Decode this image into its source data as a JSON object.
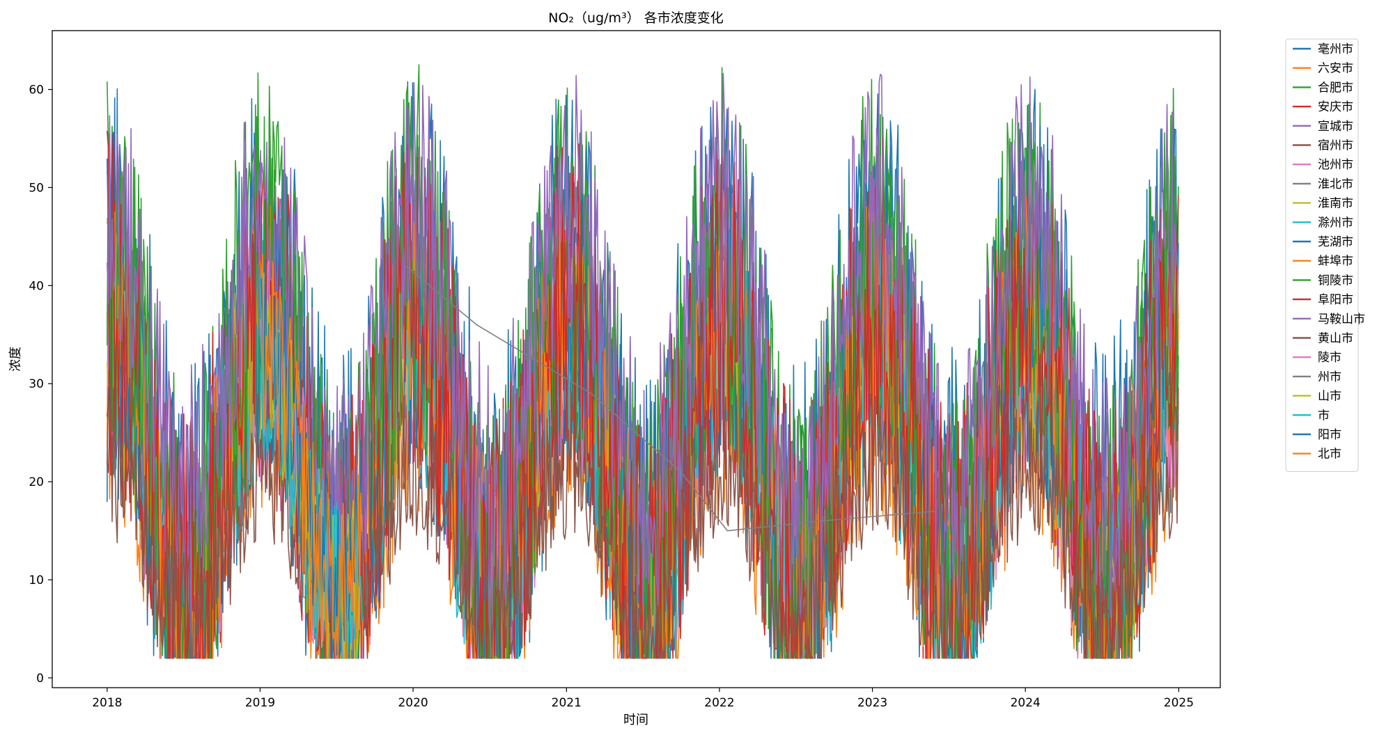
{
  "chart_data": {
    "type": "line",
    "title": "NO₂（ug/m³） 各市浓度变化",
    "xlabel": "时间",
    "ylabel": "浓度",
    "x_ticks": [
      "2018",
      "2019",
      "2020",
      "2021",
      "2022",
      "2023",
      "2024",
      "2025"
    ],
    "y_ticks": [
      0,
      10,
      20,
      30,
      40,
      50,
      60
    ],
    "xlim": [
      "2017-08-23",
      "2025-04-10"
    ],
    "ylim": [
      -1,
      66
    ],
    "grid": false,
    "legend_position": "outside-right",
    "series": [
      {
        "name": "亳州市",
        "color": "#1f77b4",
        "lo": 12,
        "hi": 40,
        "noise": 22,
        "phase": 0.1
      },
      {
        "name": "六安市",
        "color": "#ff7f0e",
        "lo": 6,
        "hi": 30,
        "noise": 14,
        "phase": 0.3
      },
      {
        "name": "合肥市",
        "color": "#2ca02c",
        "lo": 12,
        "hi": 45,
        "noise": 18,
        "phase": 0.5
      },
      {
        "name": "安庆市",
        "color": "#d62728",
        "lo": 8,
        "hi": 36,
        "noise": 16,
        "phase": 0.7
      },
      {
        "name": "宣城市",
        "color": "#9467bd",
        "lo": 10,
        "hi": 40,
        "noise": 14,
        "phase": 0.9
      },
      {
        "name": "宿州市",
        "color": "#8c564b",
        "lo": 6,
        "hi": 28,
        "noise": 10,
        "phase": 1.1
      },
      {
        "name": "池州市",
        "color": "#e377c2",
        "lo": 6,
        "hi": 32,
        "noise": 12,
        "phase": 1.3
      },
      {
        "name": "淮北市",
        "color": "#7f7f7f",
        "lo": 10,
        "hi": 40,
        "noise": 14,
        "phase": 1.5
      },
      {
        "name": "淮南市",
        "color": "#bcbd22",
        "lo": 8,
        "hi": 34,
        "noise": 12,
        "phase": 1.7
      },
      {
        "name": "滁州市",
        "color": "#17becf",
        "lo": 7,
        "hi": 34,
        "noise": 14,
        "phase": 1.9
      },
      {
        "name": "芜湖市",
        "color": "#1f77b4",
        "lo": 10,
        "hi": 40,
        "noise": 18,
        "phase": 2.1
      },
      {
        "name": "蚌埠市",
        "color": "#ff7f0e",
        "lo": 8,
        "hi": 36,
        "noise": 14,
        "phase": 2.3
      },
      {
        "name": "铜陵市",
        "color": "#2ca02c",
        "lo": 10,
        "hi": 42,
        "noise": 18,
        "phase": 2.5
      },
      {
        "name": "阜阳市",
        "color": "#d62728",
        "lo": 10,
        "hi": 38,
        "noise": 18,
        "phase": 2.7
      },
      {
        "name": "马鞍山市",
        "color": "#9467bd",
        "lo": 18,
        "hi": 48,
        "noise": 14,
        "phase": 2.9
      },
      {
        "name": "黄山市",
        "color": "#8c564b",
        "lo": 5,
        "hi": 22,
        "noise": 8,
        "phase": 3.1
      },
      {
        "name": "陵市",
        "color": "#e377c2",
        "lo": 8,
        "hi": 34,
        "noise": 10,
        "phase": 3.3,
        "short": true
      },
      {
        "name": "州市",
        "color": "#7f7f7f",
        "lo": 12,
        "hi": 36,
        "noise": 6,
        "phase": 3.5,
        "sparse": true
      },
      {
        "name": "山市",
        "color": "#bcbd22",
        "lo": 8,
        "hi": 32,
        "noise": 10,
        "phase": 3.7,
        "short": true
      },
      {
        "name": "市",
        "color": "#17becf",
        "lo": 8,
        "hi": 32,
        "noise": 10,
        "phase": 3.9,
        "short": true
      },
      {
        "name": "阳市",
        "color": "#1f77b4",
        "lo": 10,
        "hi": 36,
        "noise": 10,
        "phase": 4.1,
        "short": true
      },
      {
        "name": "北市",
        "color": "#ff7f0e",
        "lo": 8,
        "hi": 34,
        "noise": 10,
        "phase": 4.3,
        "short": true
      }
    ]
  }
}
